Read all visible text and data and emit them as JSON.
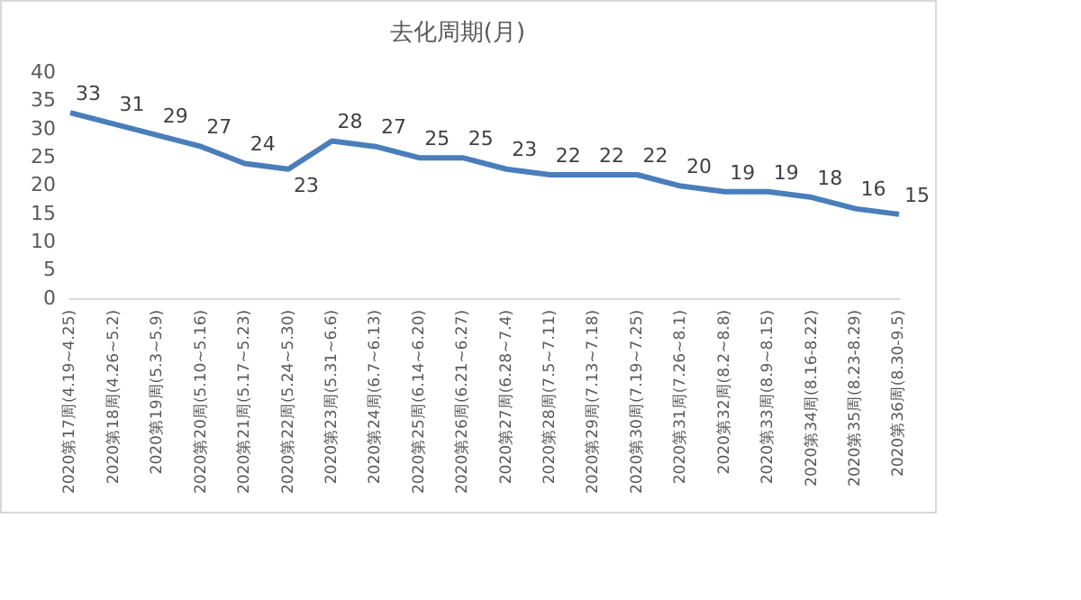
{
  "chart_data": {
    "type": "line",
    "title": "去化周期(月)",
    "categories": [
      "2020第17周(4.19~4.25)",
      "2020第18周(4.26~5.2)",
      "2020第19周(5.3~5.9)",
      "2020第20周(5.10~5.16)",
      "2020第21周(5.17~5.23)",
      "2020第22周(5.24~5.30)",
      "2020第23周(5.31~6.6)",
      "2020第24周(6.7~6.13)",
      "2020第25周(6.14~6.20)",
      "2020第26周(6.21~6.27)",
      "2020第27周(6.28~7.4)",
      "2020第28周(7.5~7.11)",
      "2020第29周(7.13~7.18)",
      "2020第30周(7.19~7.25)",
      "2020第31周(7.26~8.1)",
      "2020第32周(8.2~8.8)",
      "2020第33周(8.9~8.15)",
      "2020第34周(8.16-8.22)",
      "2020第35周(8.23-8.29)",
      "2020第36周(8.30-9.5)"
    ],
    "series": [
      {
        "color": "#4a7ebb",
        "values": [
          33,
          31,
          29,
          27,
          24,
          23,
          28,
          27,
          25,
          25,
          23,
          22,
          22,
          22,
          20,
          19,
          19,
          18,
          16,
          15
        ]
      }
    ],
    "ylim": [
      0,
      40
    ],
    "yticks": [
      0,
      5,
      10,
      15,
      20,
      25,
      30,
      35,
      40
    ],
    "grid": false,
    "legend": false,
    "marker": "none",
    "line_style": "solid",
    "data_labels": true
  }
}
